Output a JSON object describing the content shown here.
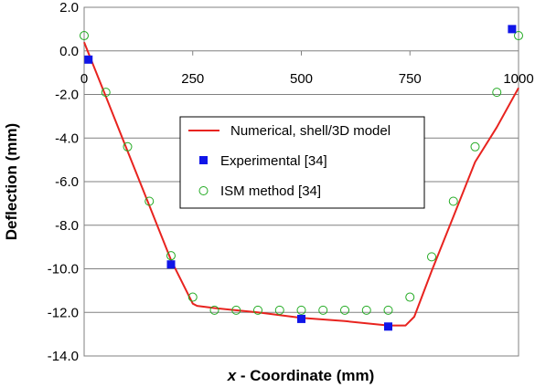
{
  "chart_data": {
    "type": "line",
    "title": "",
    "xlabel_var": "x",
    "xlabel_rest": " - Coordinate (mm)",
    "ylabel": "Deflection (mm)",
    "xlim": [
      0,
      1000
    ],
    "ylim": [
      -14.0,
      2.0
    ],
    "x_ticks": [
      0,
      250,
      500,
      750,
      1000
    ],
    "x_tick_labels": [
      "0",
      "250",
      "500",
      "750",
      "1000"
    ],
    "y_ticks": [
      2.0,
      0.0,
      -2.0,
      -4.0,
      -6.0,
      -8.0,
      -10.0,
      -12.0,
      -14.0
    ],
    "y_tick_labels": [
      "2.0",
      "0.0",
      "-2.0",
      "-4.0",
      "-6.0",
      "-8.0",
      "-10.0",
      "-12.0",
      "-14.0"
    ],
    "grid": "horizontal",
    "legend_position": "center",
    "series": [
      {
        "name": "Numerical, shell/3D model",
        "style": "line",
        "color": "#e8231f",
        "x": [
          0,
          20,
          50,
          100,
          150,
          200,
          250,
          260,
          300,
          400,
          500,
          600,
          700,
          740,
          760,
          800,
          850,
          900,
          950,
          1000
        ],
        "y": [
          0.4,
          -0.6,
          -2.1,
          -4.6,
          -7.1,
          -9.6,
          -11.6,
          -11.7,
          -11.8,
          -12.0,
          -12.25,
          -12.4,
          -12.6,
          -12.6,
          -12.2,
          -10.1,
          -7.6,
          -5.1,
          -3.5,
          -1.7
        ]
      },
      {
        "name": "Experimental [34]",
        "style": "square",
        "color": "#1015e8",
        "x": [
          10,
          200,
          500,
          700,
          985
        ],
        "y": [
          -0.4,
          -9.8,
          -12.3,
          -12.65,
          1.0
        ]
      },
      {
        "name": "ISM method [34]",
        "style": "circle",
        "color": "#22aa22",
        "x": [
          0,
          50,
          100,
          150,
          200,
          250,
          300,
          350,
          400,
          450,
          500,
          550,
          600,
          650,
          700,
          750,
          800,
          850,
          900,
          950,
          1000
        ],
        "y": [
          0.7,
          -1.9,
          -4.4,
          -6.9,
          -9.4,
          -11.3,
          -11.9,
          -11.9,
          -11.9,
          -11.9,
          -11.9,
          -11.9,
          -11.9,
          -11.9,
          -11.9,
          -11.3,
          -9.45,
          -6.9,
          -4.4,
          -1.9,
          0.7
        ]
      }
    ]
  }
}
